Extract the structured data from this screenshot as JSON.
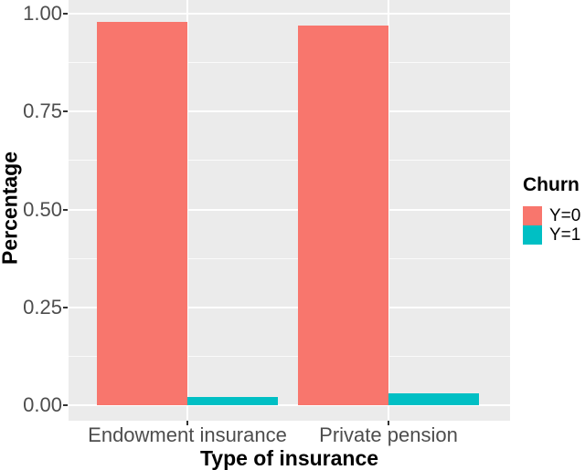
{
  "chart_data": {
    "type": "bar",
    "bar_mode": "dodge",
    "title": "",
    "categories": [
      "Endowment insurance",
      "Private pension"
    ],
    "series": [
      {
        "name": "Y=0",
        "color": "#F8766D",
        "values": [
          0.98,
          0.97
        ]
      },
      {
        "name": "Y=1",
        "color": "#00BFC4",
        "values": [
          0.02,
          0.03
        ]
      }
    ],
    "xlabel": "Type of insurance",
    "ylabel": "Percentage",
    "ylim": [
      0,
      1.0
    ],
    "yticks": [
      0.0,
      0.25,
      0.5,
      0.75,
      1.0
    ],
    "ytick_labels": [
      "0.00",
      "0.25",
      "0.50",
      "0.75",
      "1.00"
    ],
    "yticks_minor": [
      0.125,
      0.375,
      0.625,
      0.875
    ],
    "grid": true,
    "legend": {
      "title": "Churn",
      "position": "right",
      "entries": [
        {
          "label": "Y=0",
          "color": "#F8766D"
        },
        {
          "label": "Y=1",
          "color": "#00BFC4"
        }
      ]
    },
    "colors": {
      "panel_background": "#EBEBEB",
      "gridline": "#FFFFFF",
      "tick_text": "#4D4D4D",
      "axis_title_text": "#000000",
      "tick_mark": "#333333",
      "figure_background": "#FFFFFF"
    }
  }
}
